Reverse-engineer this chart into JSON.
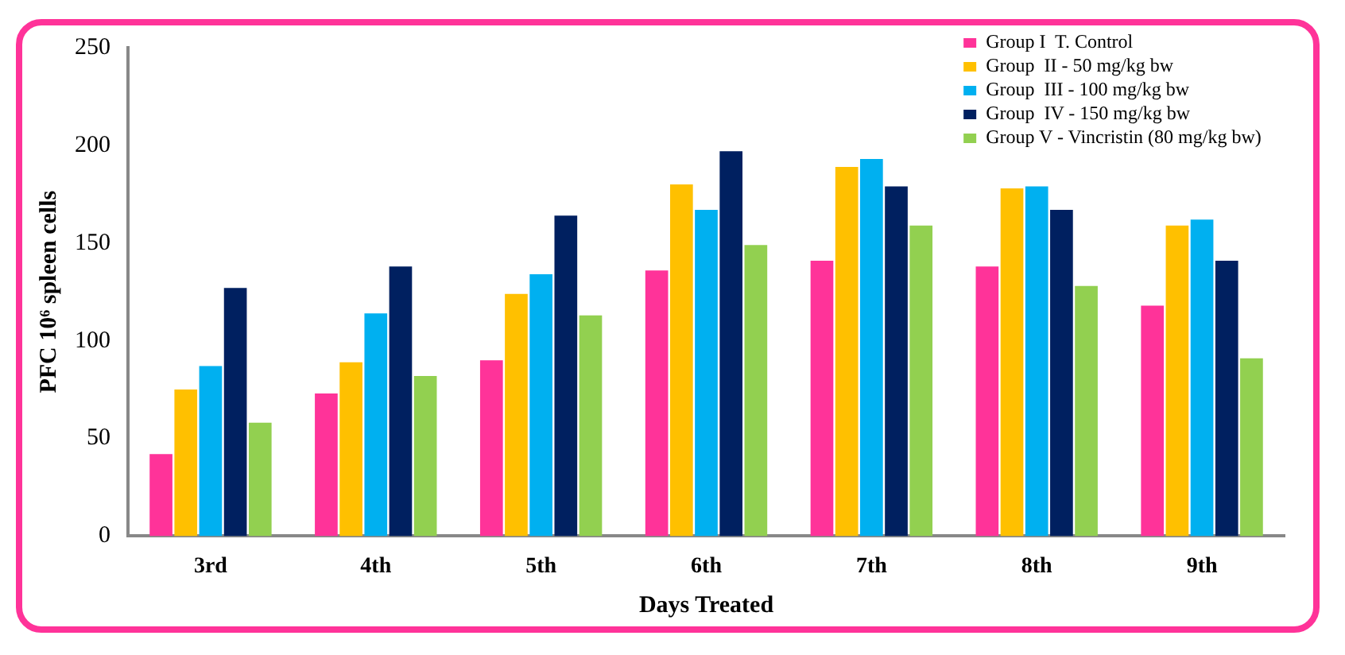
{
  "chart_data": {
    "type": "bar",
    "xlabel": "Days Treated",
    "ylabel": "PFC 10⁶ spleen cells",
    "categories": [
      "3rd",
      "4th",
      "5th",
      "6th",
      "7th",
      "8th",
      "9th"
    ],
    "series": [
      {
        "name": "Group I  T. Control",
        "color": "#ff3399",
        "values": [
          42,
          73,
          90,
          136,
          141,
          138,
          118
        ]
      },
      {
        "name": "Group  II - 50 mg/kg bw",
        "color": "#ffc000",
        "values": [
          75,
          89,
          124,
          180,
          189,
          178,
          159
        ]
      },
      {
        "name": "Group  III - 100 mg/kg bw",
        "color": "#00b0f0",
        "values": [
          87,
          114,
          134,
          167,
          193,
          179,
          162
        ]
      },
      {
        "name": "Group  IV - 150 mg/kg bw",
        "color": "#002060",
        "values": [
          127,
          138,
          164,
          197,
          179,
          167,
          141
        ]
      },
      {
        "name": "Group V - Vincristin (80 mg/kg bw)",
        "color": "#92d050",
        "values": [
          58,
          82,
          113,
          149,
          159,
          128,
          91
        ]
      }
    ],
    "ylim": [
      0,
      250
    ],
    "yticks": [
      0,
      50,
      100,
      150,
      200,
      250
    ],
    "grid": false,
    "legend": "top right"
  }
}
